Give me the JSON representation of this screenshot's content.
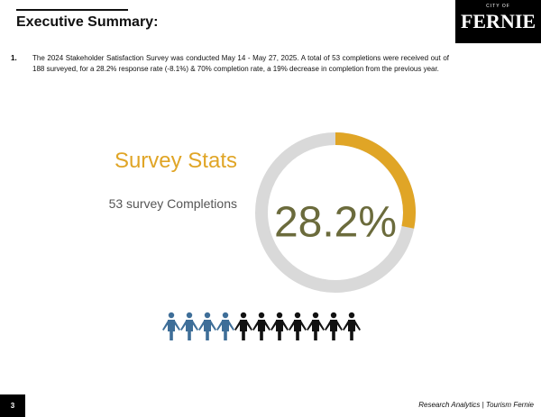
{
  "header": {
    "title": "Executive Summary:"
  },
  "logo": {
    "top": "CITY OF",
    "name": "FERNIE"
  },
  "items": [
    {
      "number": "1.",
      "text": "The 2024 Stakeholder Satisfaction Survey was conducted May 14 - May 27, 2025. A total of 53 completions were received out of 188 surveyed, for a 28.2% response rate (-8.1%) & 70% completion rate, a 19% decrease in completion from the previous year."
    }
  ],
  "stats": {
    "heading": "Survey Stats",
    "completions": "53 survey Completions"
  },
  "stat": {
    "value": 28.2,
    "label": "28.2%"
  },
  "footer": {
    "page": "3",
    "source": "Research Analytics | Tourism Fernie"
  }
}
